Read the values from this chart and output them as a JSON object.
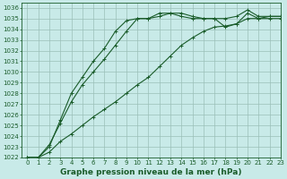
{
  "title": "Graphe pression niveau de la mer (hPa)",
  "bg_color": "#c8eae8",
  "grid_color": "#9bbfb8",
  "line_color": "#1a5c2a",
  "xlim": [
    -0.5,
    23
  ],
  "ylim": [
    1022,
    1036.5
  ],
  "yticks": [
    1022,
    1023,
    1024,
    1025,
    1026,
    1027,
    1028,
    1029,
    1030,
    1031,
    1032,
    1033,
    1034,
    1035,
    1036
  ],
  "xticks": [
    0,
    1,
    2,
    3,
    4,
    5,
    6,
    7,
    8,
    9,
    10,
    11,
    12,
    13,
    14,
    15,
    16,
    17,
    18,
    19,
    20,
    21,
    22,
    23
  ],
  "line1_x": [
    0,
    1,
    2,
    3,
    4,
    5,
    6,
    7,
    8,
    9,
    10,
    11,
    12,
    13,
    14,
    15,
    16,
    17,
    18,
    19,
    20,
    21,
    22,
    23
  ],
  "line1_y": [
    1022,
    1022,
    1023.2,
    1025.2,
    1027.2,
    1028.8,
    1030.0,
    1031.2,
    1032.5,
    1033.8,
    1035.0,
    1035.0,
    1035.2,
    1035.5,
    1035.5,
    1035.2,
    1035.0,
    1035.0,
    1035.0,
    1035.2,
    1035.8,
    1035.2,
    1035.2,
    1035.2
  ],
  "line2_x": [
    0,
    1,
    2,
    3,
    4,
    5,
    6,
    7,
    8,
    9,
    10,
    11,
    12,
    13,
    14,
    15,
    16,
    17,
    18,
    19,
    20,
    21,
    22,
    23
  ],
  "line2_y": [
    1022,
    1022,
    1023.0,
    1025.5,
    1028.0,
    1029.5,
    1031.0,
    1032.2,
    1033.8,
    1034.8,
    1035.0,
    1035.0,
    1035.5,
    1035.5,
    1035.2,
    1035.0,
    1035.0,
    1035.0,
    1034.2,
    1034.5,
    1035.5,
    1035.0,
    1035.0,
    1035.0
  ],
  "line3_x": [
    0,
    1,
    2,
    3,
    4,
    5,
    6,
    7,
    8,
    9,
    10,
    11,
    12,
    13,
    14,
    15,
    16,
    17,
    18,
    19,
    20,
    21,
    22,
    23
  ],
  "line3_y": [
    1022,
    1022,
    1022.5,
    1023.5,
    1024.2,
    1025.0,
    1025.8,
    1026.5,
    1027.2,
    1028.0,
    1028.8,
    1029.5,
    1030.5,
    1031.5,
    1032.5,
    1033.2,
    1033.8,
    1034.2,
    1034.3,
    1034.5,
    1035.0,
    1035.0,
    1035.2,
    1035.2
  ],
  "title_fontsize": 6.5,
  "tick_fontsize": 5.0,
  "marker": "+"
}
